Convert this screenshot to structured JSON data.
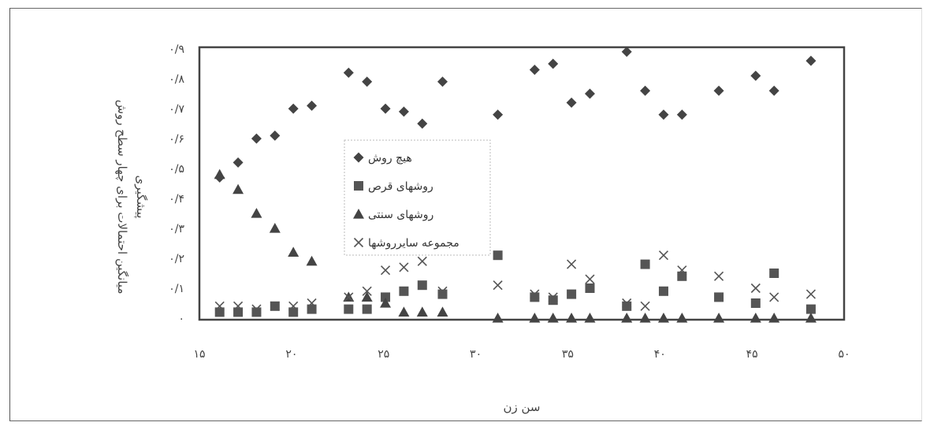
{
  "chart_data": {
    "type": "scatter",
    "xlabel": "سن زن",
    "ylabel_lines": [
      "میانگین احتمالات برای چهار سطح روش",
      "پیشگیری"
    ],
    "xlim": [
      15,
      50
    ],
    "ylim": [
      0,
      0.9
    ],
    "x_ticks": [
      {
        "value": 15,
        "label": "۱۵"
      },
      {
        "value": 20,
        "label": "۲۰"
      },
      {
        "value": 25,
        "label": "۲۵"
      },
      {
        "value": 30,
        "label": "۳۰"
      },
      {
        "value": 35,
        "label": "۳۵"
      },
      {
        "value": 40,
        "label": "۴۰"
      },
      {
        "value": 45,
        "label": "۴۵"
      },
      {
        "value": 50,
        "label": "۵۰"
      }
    ],
    "y_ticks": [
      {
        "value": 0,
        "label": "۰"
      },
      {
        "value": 0.1,
        "label": "۰/۱"
      },
      {
        "value": 0.2,
        "label": "۰/۲"
      },
      {
        "value": 0.3,
        "label": "۰/۳"
      },
      {
        "value": 0.4,
        "label": "۰/۴"
      },
      {
        "value": 0.5,
        "label": "۰/۵"
      },
      {
        "value": 0.6,
        "label": "۰/۶"
      },
      {
        "value": 0.7,
        "label": "۰/۷"
      },
      {
        "value": 0.8,
        "label": "۰/۸"
      },
      {
        "value": 0.9,
        "label": "۰/۹"
      }
    ],
    "series": [
      {
        "name": "هیچ روش",
        "marker": "diamond",
        "color": "#444444",
        "x": [
          16.1,
          17.1,
          18.1,
          19.1,
          20.1,
          21.1,
          23.1,
          24.1,
          25.1,
          26.1,
          27.1,
          28.2,
          31.2,
          33.2,
          34.2,
          35.2,
          36.2,
          38.2,
          39.2,
          40.2,
          41.2,
          43.2,
          45.2,
          46.2,
          48.2
        ],
        "y": [
          0.47,
          0.52,
          0.6,
          0.61,
          0.7,
          0.71,
          0.82,
          0.79,
          0.7,
          0.69,
          0.65,
          0.79,
          0.68,
          0.83,
          0.85,
          0.72,
          0.75,
          0.89,
          0.76,
          0.68,
          0.68,
          0.76,
          0.81,
          0.76,
          0.86
        ]
      },
      {
        "name": "روشهای قرص",
        "marker": "square",
        "color": "#555555",
        "x": [
          16.1,
          17.1,
          18.1,
          19.1,
          20.1,
          21.1,
          23.1,
          24.1,
          25.1,
          26.1,
          27.1,
          28.2,
          31.2,
          33.2,
          34.2,
          35.2,
          36.2,
          38.2,
          39.2,
          40.2,
          41.2,
          43.2,
          45.2,
          46.2,
          48.2
        ],
        "y": [
          0.02,
          0.02,
          0.02,
          0.04,
          0.02,
          0.03,
          0.03,
          0.03,
          0.07,
          0.09,
          0.11,
          0.08,
          0.21,
          0.07,
          0.06,
          0.08,
          0.1,
          0.04,
          0.18,
          0.09,
          0.14,
          0.07,
          0.05,
          0.15,
          0.03
        ]
      },
      {
        "name": "روشهای سنتی",
        "marker": "triangle",
        "color": "#444444",
        "x": [
          16.1,
          17.1,
          18.1,
          19.1,
          20.1,
          21.1,
          23.1,
          24.1,
          25.1,
          26.1,
          27.1,
          28.2,
          31.2,
          33.2,
          34.2,
          35.2,
          36.2,
          38.2,
          39.2,
          40.2,
          41.2,
          43.2,
          45.2,
          46.2,
          48.2
        ],
        "y": [
          0.48,
          0.43,
          0.35,
          0.3,
          0.22,
          0.19,
          0.07,
          0.07,
          0.05,
          0.02,
          0.02,
          0.02,
          0.0,
          0.0,
          0.0,
          0.0,
          0.0,
          0.0,
          0.0,
          0.0,
          0.0,
          0.0,
          0.0,
          0.0,
          0.0
        ]
      },
      {
        "name": "مجموعه سایرروشها",
        "marker": "x",
        "color": "#555555",
        "x": [
          16.1,
          17.1,
          18.1,
          19.1,
          20.1,
          21.1,
          23.1,
          24.1,
          25.1,
          26.1,
          27.1,
          28.2,
          31.2,
          33.2,
          34.2,
          35.2,
          36.2,
          38.2,
          39.2,
          40.2,
          41.2,
          43.2,
          45.2,
          46.2,
          48.2
        ],
        "y": [
          0.04,
          0.04,
          0.03,
          0.04,
          0.04,
          0.05,
          0.07,
          0.09,
          0.16,
          0.17,
          0.19,
          0.09,
          0.11,
          0.08,
          0.07,
          0.18,
          0.13,
          0.05,
          0.04,
          0.21,
          0.16,
          0.14,
          0.1,
          0.07,
          0.08
        ]
      }
    ],
    "legend_position": "center-left",
    "grid": false
  }
}
